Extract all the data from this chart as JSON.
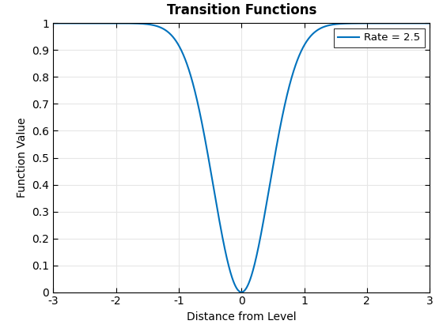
{
  "title": "Transition Functions",
  "xlabel": "Distance from Level",
  "ylabel": "Function Value",
  "xlim": [
    -3,
    3
  ],
  "ylim": [
    0,
    1
  ],
  "xticks": [
    -3,
    -2,
    -1,
    0,
    1,
    2,
    3
  ],
  "yticks": [
    0,
    0.1,
    0.2,
    0.3,
    0.4,
    0.5,
    0.6,
    0.7,
    0.8,
    0.9,
    1.0
  ],
  "rate": 2.5,
  "legend_label": "Rate = 2.5",
  "line_color": "#0072BD",
  "line_width": 1.5,
  "background_color": "#ffffff",
  "grid_color": "#e6e6e6",
  "title_fontsize": 12,
  "label_fontsize": 10,
  "tick_fontsize": 10
}
